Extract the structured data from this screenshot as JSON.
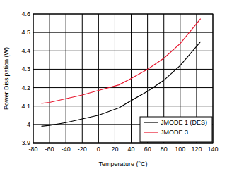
{
  "chart_data": {
    "type": "line",
    "x_label": "Temperature (°C)",
    "y_label": "Power Dissipation (W)",
    "x": [
      -70,
      -60,
      -40,
      -20,
      0,
      25,
      40,
      60,
      80,
      100,
      125
    ],
    "series": [
      {
        "name": "JMODE 1 (DES)",
        "color": "#000000",
        "values": [
          3.99,
          3.995,
          4.01,
          4.03,
          4.05,
          4.09,
          4.13,
          4.18,
          4.24,
          4.32,
          4.45
        ]
      },
      {
        "name": "JMODE 3",
        "color": "#e8142c",
        "values": [
          4.115,
          4.12,
          4.14,
          4.16,
          4.185,
          4.215,
          4.25,
          4.3,
          4.36,
          4.44,
          4.575
        ]
      }
    ],
    "xlim": [
      -80,
      140
    ],
    "xticks": [
      -80,
      -60,
      -40,
      -20,
      0,
      20,
      40,
      60,
      80,
      100,
      120,
      140
    ],
    "ylim": [
      3.9,
      4.6
    ],
    "yticks": [
      3.9,
      4,
      4.1,
      4.2,
      4.3,
      4.4,
      4.5,
      4.6
    ],
    "grid": true,
    "legend": "lower right"
  }
}
